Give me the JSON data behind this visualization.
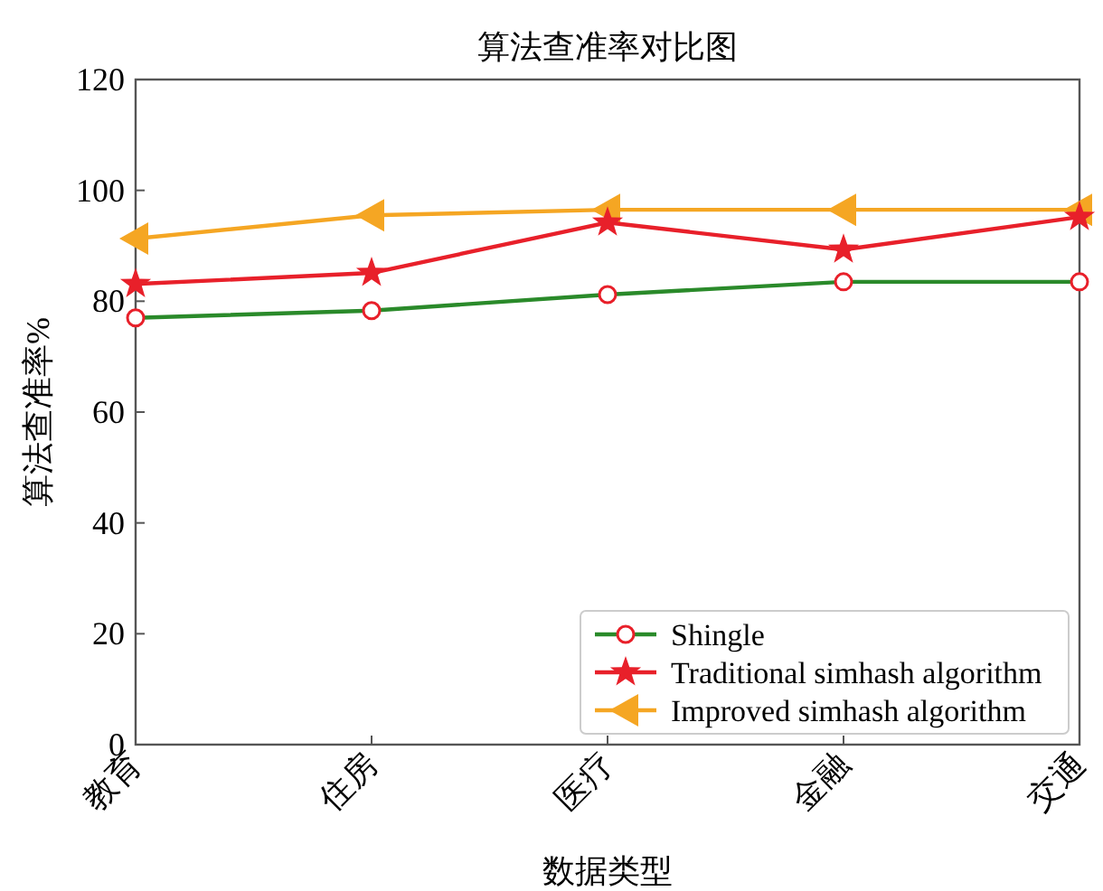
{
  "chart_data": {
    "type": "line",
    "title": "算法查准率对比图",
    "xlabel": "数据类型",
    "ylabel": "算法查准率%",
    "categories": [
      "教育",
      "住房",
      "医疗",
      "金融",
      "交通"
    ],
    "series": [
      {
        "name": "Shingle",
        "color": "#2a8a2a",
        "marker": "circle",
        "values": [
          77.0,
          78.3,
          81.2,
          83.5,
          83.5
        ]
      },
      {
        "name": "Traditional simhash algorithm",
        "color": "#e8202a",
        "marker": "star",
        "values": [
          83.1,
          85.1,
          94.2,
          89.3,
          95.2
        ]
      },
      {
        "name": "Improved simhash algorithm",
        "color": "#f5a623",
        "marker": "triangle",
        "values": [
          91.3,
          95.5,
          96.5,
          96.5,
          96.5
        ]
      }
    ],
    "ylim": [
      0,
      120
    ],
    "yticks": [
      0,
      20,
      40,
      60,
      80,
      100,
      120
    ],
    "grid": false,
    "legend": "bottom right",
    "line_style": "solid"
  }
}
